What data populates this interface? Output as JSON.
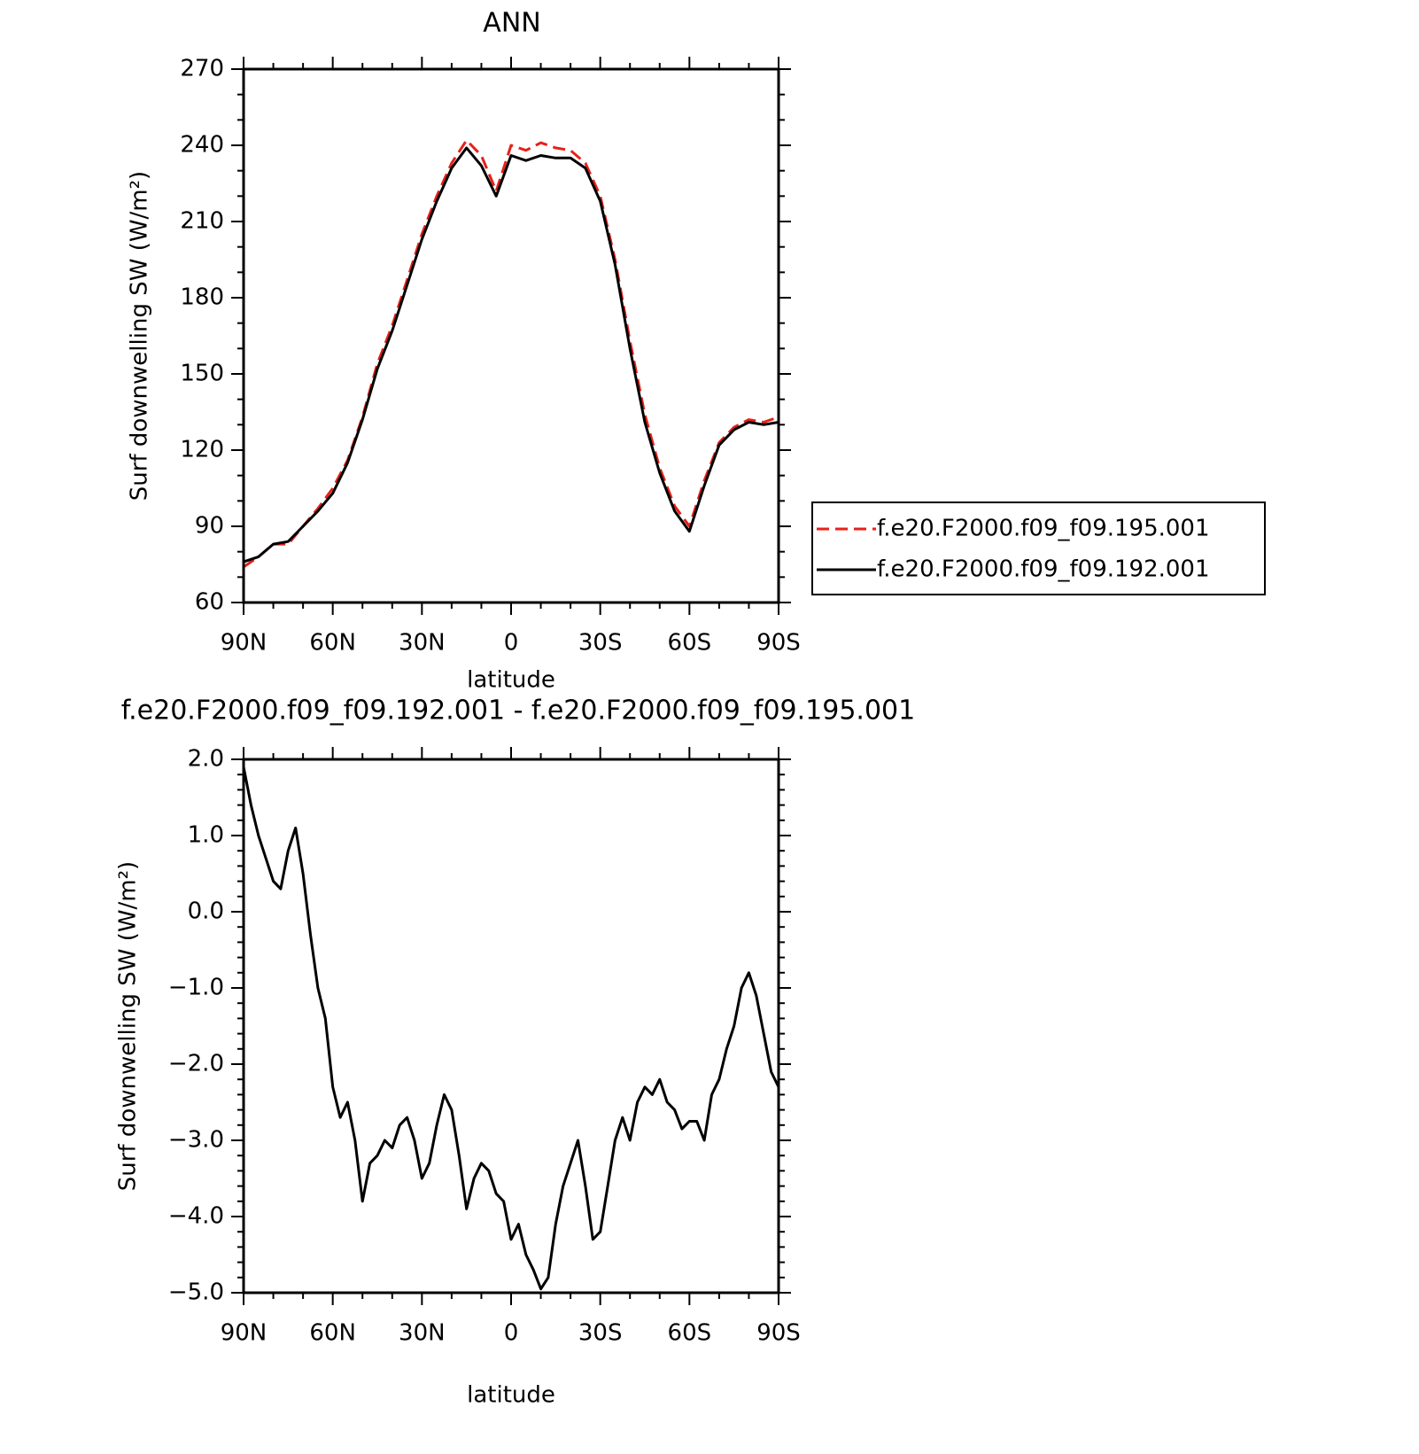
{
  "chart_data": [
    {
      "type": "line",
      "title": "ANN",
      "xlabel": "latitude",
      "ylabel": "Surf downwelling SW (W/m²)",
      "x": [
        90,
        85,
        80,
        75,
        70,
        65,
        60,
        55,
        50,
        45,
        40,
        35,
        30,
        25,
        20,
        15,
        10,
        5,
        0,
        -5,
        -10,
        -15,
        -20,
        -25,
        -30,
        -35,
        -40,
        -45,
        -50,
        -55,
        -60,
        -65,
        -70,
        -75,
        -80,
        -85,
        -90
      ],
      "xlim": [
        90,
        -90
      ],
      "xticks": [
        {
          "value": 90,
          "label": "90N"
        },
        {
          "value": 60,
          "label": "60N"
        },
        {
          "value": 30,
          "label": "30N"
        },
        0,
        {
          "value": -30,
          "label": "30S"
        },
        {
          "value": -60,
          "label": "60S"
        },
        {
          "value": -90,
          "label": "90S"
        }
      ],
      "ylim": [
        60,
        270
      ],
      "yticks": [
        60,
        90,
        120,
        150,
        180,
        210,
        240,
        270
      ],
      "series": [
        {
          "name": "f.e20.F2000.f09_f09.195.001",
          "color": "#e8201a",
          "dash": true,
          "values": [
            74,
            78,
            83,
            83,
            90,
            97,
            105,
            116,
            133,
            154,
            169,
            187,
            205,
            220,
            233,
            242,
            236,
            222,
            240,
            238,
            241,
            239,
            238,
            233,
            220,
            195,
            163,
            134,
            113,
            98,
            90,
            108,
            123,
            129,
            132,
            131,
            133
          ]
        },
        {
          "name": "f.e20.F2000.f09_f09.192.001",
          "color": "#000000",
          "dash": false,
          "values": [
            76,
            78,
            83,
            84,
            90,
            96,
            103,
            115,
            132,
            152,
            167,
            185,
            203,
            218,
            231,
            239,
            232,
            220,
            236,
            234,
            236,
            235,
            235,
            231,
            218,
            193,
            160,
            131,
            111,
            96,
            88,
            106,
            122,
            128,
            131,
            130,
            131
          ]
        }
      ]
    },
    {
      "type": "line",
      "title": "f.e20.F2000.f09_f09.192.001 - f.e20.F2000.f09_f09.195.001",
      "xlabel": "latitude",
      "ylabel": "Surf downwelling SW (W/m²)",
      "x": [
        90,
        87.5,
        85,
        82.5,
        80,
        77.5,
        75,
        72.5,
        70,
        67.5,
        65,
        62.5,
        60,
        57.5,
        55,
        52.5,
        50,
        47.5,
        45,
        42.5,
        40,
        37.5,
        35,
        32.5,
        30,
        27.5,
        25,
        22.5,
        20,
        17.5,
        15,
        12.5,
        10,
        7.5,
        5,
        2.5,
        0,
        -2.5,
        -5,
        -7.5,
        -10,
        -12.5,
        -15,
        -17.5,
        -20,
        -22.5,
        -25,
        -27.5,
        -30,
        -32.5,
        -35,
        -37.5,
        -40,
        -42.5,
        -45,
        -47.5,
        -50,
        -52.5,
        -55,
        -57.5,
        -60,
        -62.5,
        -65,
        -67.5,
        -70,
        -72.5,
        -75,
        -77.5,
        -80,
        -82.5,
        -85,
        -87.5,
        -90
      ],
      "xlim": [
        90,
        -90
      ],
      "xticks": [
        {
          "value": 90,
          "label": "90N"
        },
        {
          "value": 60,
          "label": "60N"
        },
        {
          "value": 30,
          "label": "30N"
        },
        0,
        {
          "value": -30,
          "label": "30S"
        },
        {
          "value": -60,
          "label": "60S"
        },
        {
          "value": -90,
          "label": "90S"
        }
      ],
      "ylim": [
        -5,
        2
      ],
      "yticks": [
        {
          "value": -5,
          "label": "−5.0"
        },
        {
          "value": -4,
          "label": "−4.0"
        },
        {
          "value": -3,
          "label": "−3.0"
        },
        {
          "value": -2,
          "label": "−2.0"
        },
        {
          "value": -1,
          "label": "−1.0"
        },
        {
          "value": 0,
          "label": "0.0"
        },
        {
          "value": 1,
          "label": "1.0"
        },
        {
          "value": 2,
          "label": "2.0"
        }
      ],
      "series": [
        {
          "color": "#000000",
          "values": [
            1.9,
            1.4,
            1.0,
            0.7,
            0.4,
            0.3,
            0.8,
            1.1,
            0.5,
            -0.3,
            -1.0,
            -1.4,
            -2.3,
            -2.7,
            -2.5,
            -3.0,
            -3.8,
            -3.3,
            -3.2,
            -3.0,
            -3.1,
            -2.8,
            -2.7,
            -3.0,
            -3.5,
            -3.3,
            -2.8,
            -2.4,
            -2.6,
            -3.2,
            -3.9,
            -3.5,
            -3.3,
            -3.4,
            -3.7,
            -3.8,
            -4.3,
            -4.1,
            -4.5,
            -4.7,
            -4.95,
            -4.8,
            -4.1,
            -3.6,
            -3.3,
            -3.0,
            -3.6,
            -4.3,
            -4.2,
            -3.6,
            -3.0,
            -2.7,
            -3.0,
            -2.5,
            -2.3,
            -2.4,
            -2.2,
            -2.5,
            -2.6,
            -2.85,
            -2.75,
            -2.75,
            -3.0,
            -2.4,
            -2.2,
            -1.8,
            -1.5,
            -1.0,
            -0.8,
            -1.1,
            -1.6,
            -2.1,
            -2.3
          ]
        }
      ]
    }
  ]
}
